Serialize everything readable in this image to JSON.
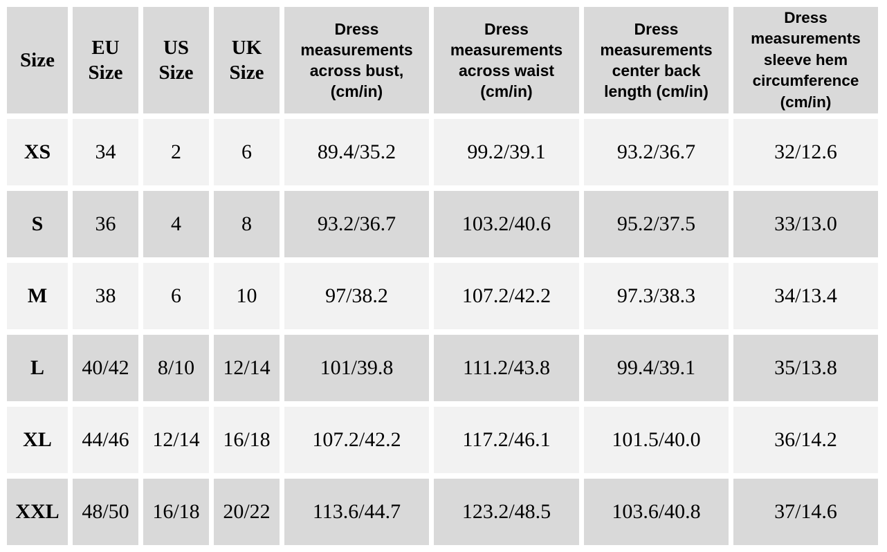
{
  "table": {
    "headers": {
      "size": "Size",
      "eu": [
        "EU",
        "Size"
      ],
      "us": [
        "US",
        "Size"
      ],
      "uk": [
        "UK",
        "Size"
      ],
      "bust": [
        "Dress",
        "measurements",
        "across bust,",
        "(cm/in)"
      ],
      "waist": [
        "Dress",
        "measurements",
        "across waist",
        "(cm/in)"
      ],
      "back": [
        "Dress",
        "measurements",
        "center back",
        "length (cm/in)"
      ],
      "sleeve": [
        "Dress",
        "measurements",
        "sleeve hem",
        "circumference",
        "(cm/in)"
      ]
    },
    "rows": [
      {
        "size": "XS",
        "eu": "34",
        "us": "2",
        "uk": "6",
        "bust": "89.4/35.2",
        "waist": "99.2/39.1",
        "back": "93.2/36.7",
        "sleeve": "32/12.6"
      },
      {
        "size": "S",
        "eu": "36",
        "us": "4",
        "uk": "8",
        "bust": "93.2/36.7",
        "waist": "103.2/40.6",
        "back": "95.2/37.5",
        "sleeve": "33/13.0"
      },
      {
        "size": "M",
        "eu": "38",
        "us": "6",
        "uk": "10",
        "bust": "97/38.2",
        "waist": "107.2/42.2",
        "back": "97.3/38.3",
        "sleeve": "34/13.4"
      },
      {
        "size": "L",
        "eu": "40/42",
        "us": "8/10",
        "uk": "12/14",
        "bust": "101/39.8",
        "waist": "111.2/43.8",
        "back": "99.4/39.1",
        "sleeve": "35/13.8"
      },
      {
        "size": "XL",
        "eu": "44/46",
        "us": "12/14",
        "uk": "16/18",
        "bust": "107.2/42.2",
        "waist": "117.2/46.1",
        "back": "101.5/40.0",
        "sleeve": "36/14.2"
      },
      {
        "size": "XXL",
        "eu": "48/50",
        "us": "16/18",
        "uk": "20/22",
        "bust": "113.6/44.7",
        "waist": "123.2/48.5",
        "back": "103.6/40.8",
        "sleeve": "37/14.6"
      }
    ]
  },
  "colors": {
    "header_bg": "#d9d9d9",
    "row_light": "#f2f2f2",
    "row_dark": "#d9d9d9",
    "gap": "#ffffff"
  }
}
